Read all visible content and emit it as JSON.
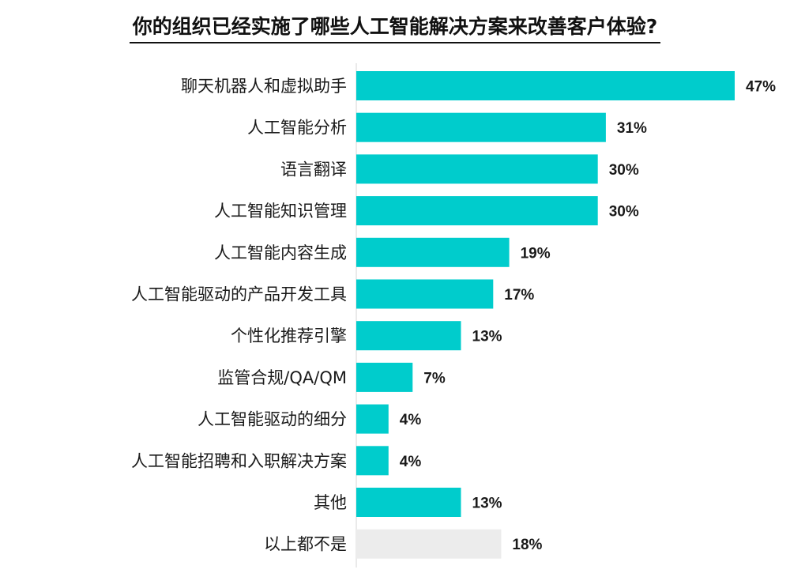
{
  "chart_data": {
    "type": "bar",
    "orientation": "horizontal",
    "title": "你的组织已经实施了哪些人工智能解决方案来改善客户体验?",
    "categories": [
      "聊天机器人和虚拟助手",
      "人工智能分析",
      "语言翻译",
      "人工智能知识管理",
      "人工智能内容生成",
      "人工智能驱动的产品开发工具",
      "个性化推荐引擎",
      "监管合规/QA/QM",
      "人工智能驱动的细分",
      "人工智能招聘和入职解决方案",
      "其他",
      "以上都不是"
    ],
    "values": [
      47,
      31,
      30,
      30,
      19,
      17,
      13,
      7,
      4,
      4,
      13,
      18
    ],
    "value_labels": [
      "47%",
      "31%",
      "30%",
      "30%",
      "19%",
      "17%",
      "13%",
      "7%",
      "4%",
      "4%",
      "13%",
      "18%"
    ],
    "unit": "%",
    "xlim": [
      0,
      47
    ],
    "grid": false,
    "legend": "none",
    "colors": {
      "bar": "#00cccc",
      "bar_none": "#ececec",
      "axis": "#e3e3e3"
    }
  }
}
